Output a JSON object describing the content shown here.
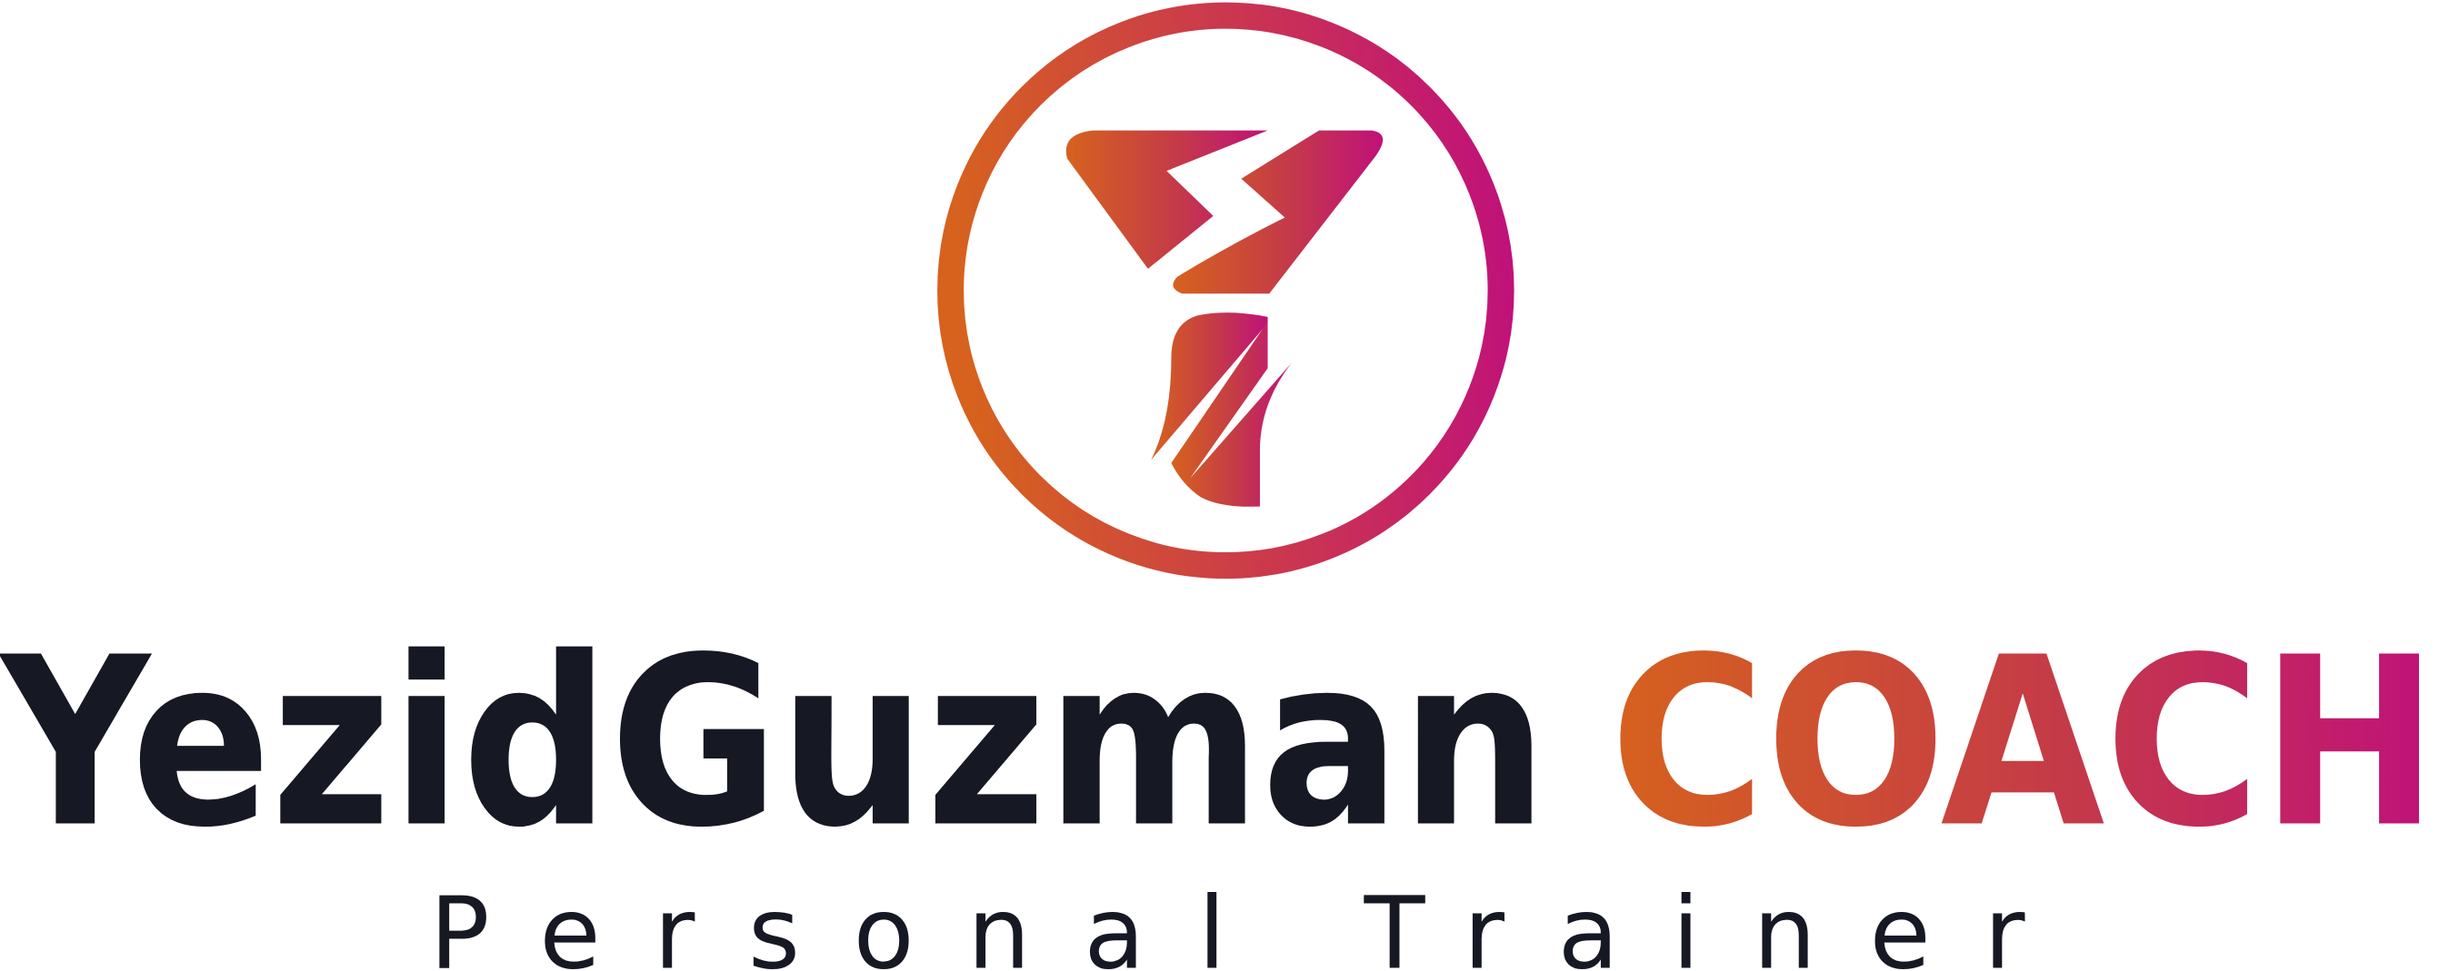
{
  "logo": {
    "name": "YezidGuzman",
    "tagline": "COACH",
    "subtitle": "Personal Trainer"
  }
}
